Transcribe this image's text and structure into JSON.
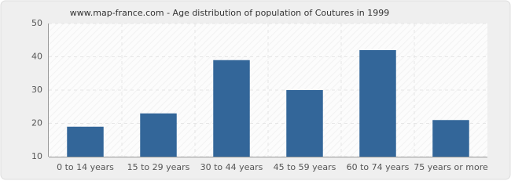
{
  "chart_data": {
    "type": "bar",
    "title": "www.map-france.com - Age distribution of population of Coutures in 1999",
    "categories": [
      "0 to 14 years",
      "15 to 29 years",
      "30 to 44 years",
      "45 to 59 years",
      "60 to 74 years",
      "75 years or more"
    ],
    "values": [
      19,
      23,
      39,
      30,
      42,
      21
    ],
    "color": "#336699",
    "ylim": [
      10,
      50
    ],
    "yticks": [
      10,
      20,
      30,
      40,
      50
    ],
    "grid": true
  }
}
